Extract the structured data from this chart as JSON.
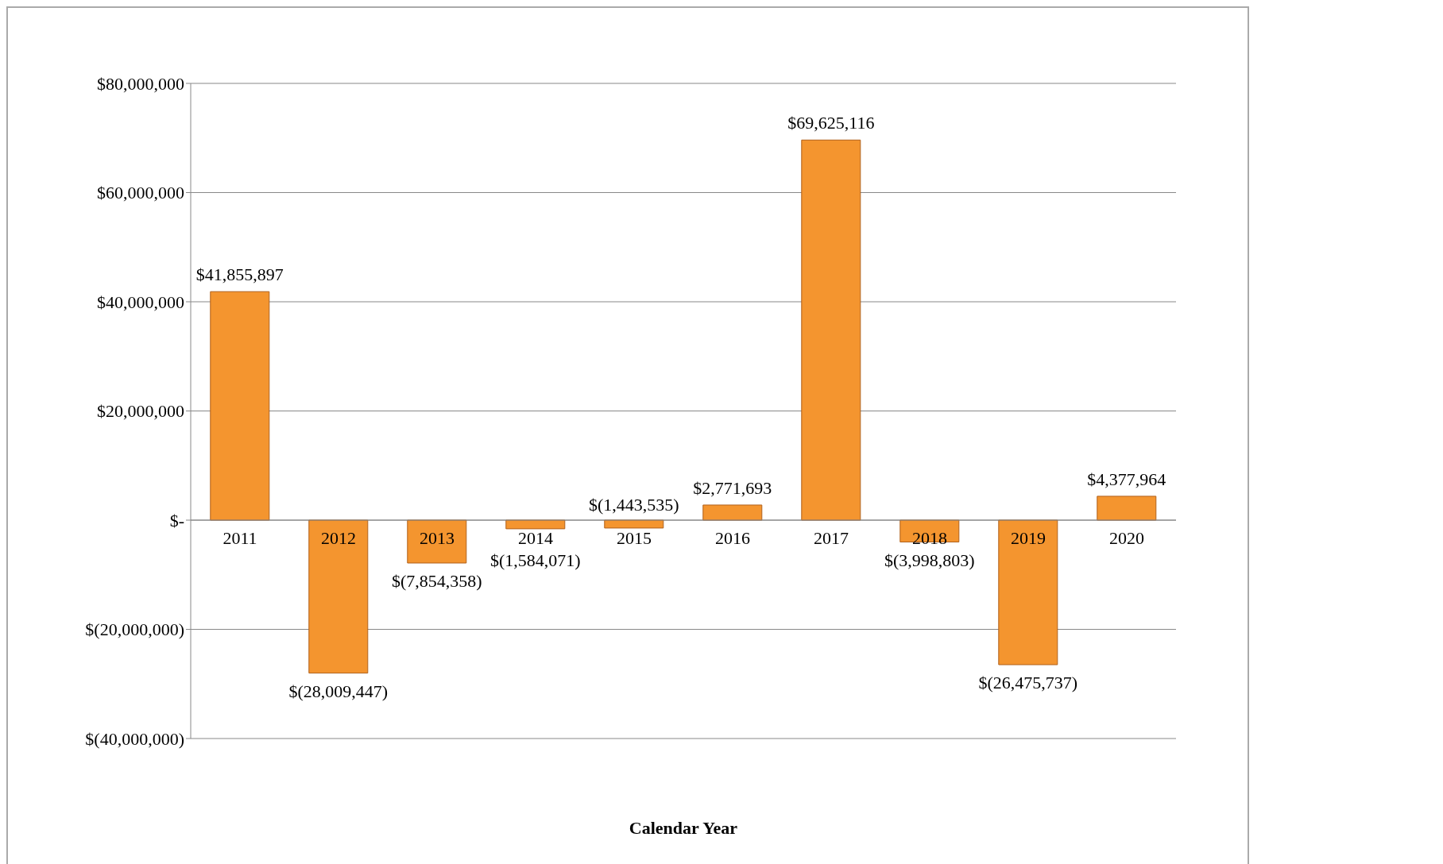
{
  "chart_data": {
    "type": "bar",
    "xlabel": "Calendar Year",
    "categories": [
      "2011",
      "2012",
      "2013",
      "2014",
      "2015",
      "2016",
      "2017",
      "2018",
      "2019",
      "2020"
    ],
    "values": [
      41855897,
      -28009447,
      -7854358,
      -1584071,
      -1443535,
      2771693,
      69625116,
      -3998803,
      -26475737,
      4377964
    ],
    "value_labels": [
      "$41,855,897",
      "$(28,009,447)",
      "$(7,854,358)",
      "$(1,584,071)",
      "$(1,443,535)",
      "$2,771,693",
      "$69,625,116",
      "$(3,998,803)",
      "$(26,475,737)",
      "$4,377,964"
    ],
    "color": "#f4952f",
    "ylim": [
      -40000000,
      80000000
    ],
    "yticks": [
      {
        "value": -40000000,
        "label": "$(40,000,000)"
      },
      {
        "value": -20000000,
        "label": "$(20,000,000)"
      },
      {
        "value": 0,
        "label": "$-"
      },
      {
        "value": 20000000,
        "label": "$20,000,000"
      },
      {
        "value": 40000000,
        "label": "$40,000,000"
      },
      {
        "value": 60000000,
        "label": "$60,000,000"
      },
      {
        "value": 80000000,
        "label": "$80,000,000"
      }
    ],
    "grid": "y",
    "legend": false
  }
}
